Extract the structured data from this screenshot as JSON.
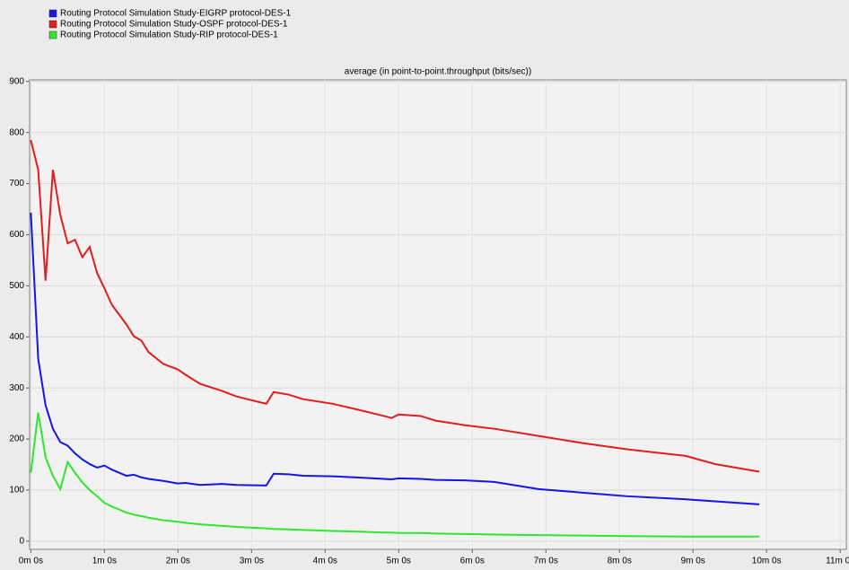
{
  "chart_data": {
    "type": "line",
    "title": "average (in point-to-point.throughput (bits/sec))",
    "x": [
      0,
      6,
      12,
      18,
      24,
      30,
      36,
      42,
      48,
      54,
      60,
      66,
      78,
      84,
      90,
      96,
      108,
      120,
      126,
      138,
      156,
      168,
      192,
      198,
      210,
      222,
      246,
      264,
      288,
      294,
      300,
      318,
      330,
      354,
      378,
      414,
      450,
      486,
      534,
      558,
      594
    ],
    "series": [
      {
        "name": "Routing Protocol Simulation Study-EIGRP protocol-DES-1",
        "color": "#1414f0",
        "values": [
          643,
          357,
          266,
          220,
          194,
          187,
          172,
          160,
          151,
          144,
          148,
          140,
          128,
          130,
          125,
          122,
          118,
          113,
          114,
          110,
          112,
          110,
          109,
          132,
          131,
          128,
          127,
          125,
          122,
          121,
          123,
          122,
          120,
          119,
          116,
          102,
          95,
          88,
          82,
          78,
          72
        ]
      },
      {
        "name": "Routing Protocol Simulation Study-OSPF protocol-DES-1",
        "color": "#e41c1c",
        "values": [
          785,
          727,
          510,
          727,
          639,
          583,
          590,
          556,
          576,
          525,
          495,
          463,
          424,
          401,
          393,
          370,
          347,
          336,
          326,
          308,
          294,
          283,
          269,
          292,
          287,
          278,
          269,
          259,
          245,
          241,
          248,
          245,
          236,
          227,
          220,
          206,
          192,
          180,
          167,
          151,
          136
        ]
      },
      {
        "name": "Routing Protocol Simulation Study-RIP protocol-DES-1",
        "color": "#2ee82e",
        "values": [
          134,
          252,
          164,
          128,
          102,
          155,
          134,
          115,
          100,
          88,
          75,
          68,
          56,
          52,
          49,
          46,
          41,
          38,
          36,
          33,
          30,
          28,
          25,
          24,
          23,
          22,
          20,
          19,
          17,
          17,
          16,
          16,
          15,
          14,
          13,
          12,
          11,
          10,
          9,
          9,
          9
        ]
      }
    ],
    "xlim": [
      -1,
      665
    ],
    "xticks": [
      {
        "value": 0,
        "label": "0m 0s"
      },
      {
        "value": 60,
        "label": "1m 0s"
      },
      {
        "value": 120,
        "label": "2m 0s"
      },
      {
        "value": 180,
        "label": "3m 0s"
      },
      {
        "value": 240,
        "label": "4m 0s"
      },
      {
        "value": 300,
        "label": "5m 0s"
      },
      {
        "value": 360,
        "label": "6m 0s"
      },
      {
        "value": 420,
        "label": "7m 0s"
      },
      {
        "value": 480,
        "label": "8m 0s"
      },
      {
        "value": 540,
        "label": "9m 0s"
      },
      {
        "value": 600,
        "label": "10m 0s"
      },
      {
        "value": 660,
        "label": "11m 0s"
      }
    ],
    "ylim": [
      -16,
      903
    ],
    "yticks": [
      0,
      100,
      200,
      300,
      400,
      500,
      600,
      700,
      800,
      900
    ],
    "grid": true
  }
}
